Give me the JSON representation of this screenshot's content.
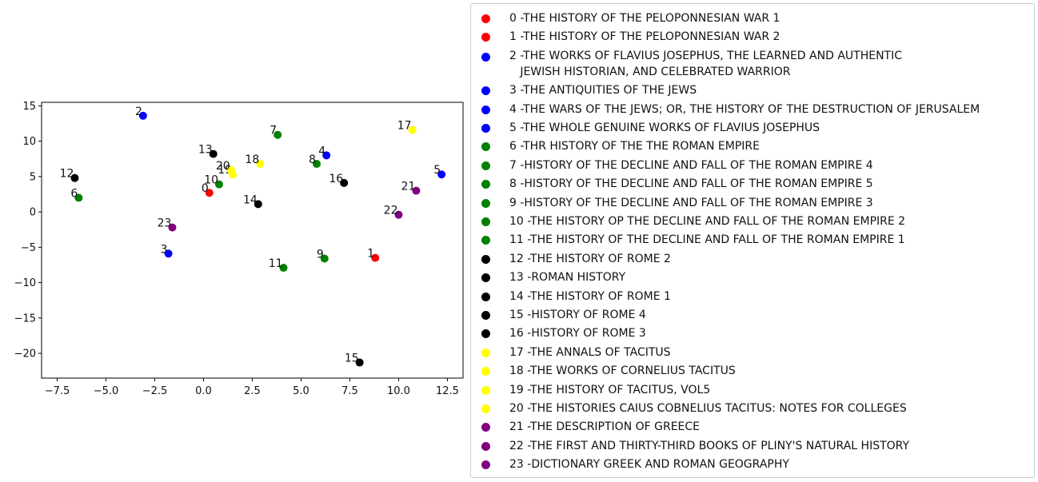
{
  "chart_data": {
    "type": "scatter",
    "title": "",
    "xlabel": "",
    "ylabel": "",
    "xlim": [
      -8.3,
      13.3
    ],
    "ylim": [
      -23.5,
      15.5
    ],
    "xticks": [
      -7.5,
      -5.0,
      -2.5,
      0.0,
      2.5,
      5.0,
      7.5,
      10.0,
      12.5
    ],
    "xtick_labels": [
      "−7.5",
      "−5.0",
      "−2.5",
      "0.0",
      "2.5",
      "5.0",
      "7.5",
      "10.0",
      "12.5"
    ],
    "yticks": [
      15,
      10,
      5,
      0,
      -5,
      -10,
      -15,
      -20
    ],
    "ytick_labels": [
      "15",
      "10",
      "5",
      "0",
      "−5",
      "−10",
      "−15",
      "−20"
    ],
    "grid": false,
    "legend_placement": "right",
    "points": [
      {
        "id": "0",
        "x": 0.3,
        "y": 2.7,
        "color": "#ff0000",
        "legend": "0 -THE HISTORY OF THE PELOPONNESIAN WAR 1"
      },
      {
        "id": "1",
        "x": 8.8,
        "y": -6.5,
        "color": "#ff0000",
        "legend": "1 -THE HISTORY OF THE PELOPONNESIAN WAR 2"
      },
      {
        "id": "2",
        "x": -3.1,
        "y": 13.6,
        "color": "#0000ff",
        "legend": "2 -THE WORKS OF FLAVIUS JOSEPHUS, THE LEARNED AND AUTHENTIC\n   JEWISH HISTORIAN, AND CELEBRATED WARRIOR"
      },
      {
        "id": "3",
        "x": -1.8,
        "y": -5.9,
        "color": "#0000ff",
        "legend": "3 -THE ANTIQUITIES OF THE JEWS"
      },
      {
        "id": "4",
        "x": 6.3,
        "y": 8.0,
        "color": "#0000ff",
        "legend": "4 -THE WARS OF THE JEWS; OR, THE HISTORY OF THE DESTRUCTION OF JERUSALEM"
      },
      {
        "id": "5",
        "x": 12.2,
        "y": 5.3,
        "color": "#0000ff",
        "legend": "5 -THE WHOLE GENUINE WORKS OF FLAVIUS JOSEPHUS"
      },
      {
        "id": "6",
        "x": -6.4,
        "y": 2.0,
        "color": "#008000",
        "legend": "6 -THR HISTORY OF THE THE ROMAN EMPIRE"
      },
      {
        "id": "7",
        "x": 3.8,
        "y": 10.9,
        "color": "#008000",
        "legend": "7 -HISTORY OF THE DECLINE AND FALL OF THE ROMAN EMPIRE 4"
      },
      {
        "id": "8",
        "x": 5.8,
        "y": 6.8,
        "color": "#008000",
        "legend": "8 -HISTORY OF THE DECLINE AND FALL OF THE ROMAN EMPIRE 5"
      },
      {
        "id": "9",
        "x": 6.2,
        "y": -6.6,
        "color": "#008000",
        "legend": "9 -HISTORY OF THE DECLINE AND FALL OF THE ROMAN EMPIRE 3"
      },
      {
        "id": "10",
        "x": 0.8,
        "y": 3.9,
        "color": "#008000",
        "legend": "10 -THE HISTORY OP THE DECLINE AND FALL OF THE ROMAN EMPIRE 2"
      },
      {
        "id": "11",
        "x": 4.1,
        "y": -7.9,
        "color": "#008000",
        "legend": "11 -THE HISTORY OF THE DECLINE AND FALL OF THE ROMAN EMPIRE 1"
      },
      {
        "id": "12",
        "x": -6.6,
        "y": 4.8,
        "color": "#000000",
        "legend": "12 -THE HISTORY OF ROME 2"
      },
      {
        "id": "13",
        "x": 0.5,
        "y": 8.2,
        "color": "#000000",
        "legend": "13 -ROMAN HISTORY"
      },
      {
        "id": "14",
        "x": 2.8,
        "y": 1.1,
        "color": "#000000",
        "legend": "14 -THE HISTORY OF ROME 1"
      },
      {
        "id": "15",
        "x": 8.0,
        "y": -21.3,
        "color": "#000000",
        "legend": "15 -HISTORY OF ROME 4"
      },
      {
        "id": "16",
        "x": 7.2,
        "y": 4.1,
        "color": "#000000",
        "legend": "16 -HISTORY OF ROME 3"
      },
      {
        "id": "17",
        "x": 10.7,
        "y": 11.6,
        "color": "#ffff00",
        "legend": "17 -THE ANNALS OF TACITUS"
      },
      {
        "id": "18",
        "x": 2.9,
        "y": 6.8,
        "color": "#ffff00",
        "legend": "18 -THE WORKS OF CORNELIUS TACITUS"
      },
      {
        "id": "19",
        "x": 1.5,
        "y": 5.3,
        "color": "#ffff00",
        "legend": "19 -THE HISTORY OF TACITUS, VOL5"
      },
      {
        "id": "20",
        "x": 1.4,
        "y": 5.9,
        "color": "#ffff00",
        "legend": "20 -THE HISTORIES CAIUS COBNELIUS TACITUS: NOTES FOR COLLEGES"
      },
      {
        "id": "21",
        "x": 10.9,
        "y": 3.0,
        "color": "#800080",
        "legend": "21 -THE DESCRIPTION OF GREECE"
      },
      {
        "id": "22",
        "x": 10.0,
        "y": -0.4,
        "color": "#800080",
        "legend": "22 -THE FIRST AND THIRTY-THIRD BOOKS OF PLINY'S NATURAL HISTORY"
      },
      {
        "id": "23",
        "x": -1.6,
        "y": -2.2,
        "color": "#800080",
        "legend": "23 -DICTIONARY GREEK AND ROMAN GEOGRAPHY"
      }
    ]
  }
}
